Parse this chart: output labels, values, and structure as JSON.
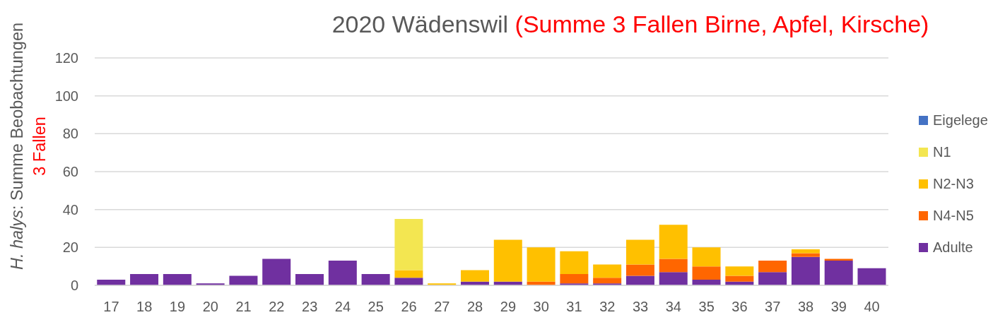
{
  "chart_data": {
    "type": "bar",
    "title": "2020 Wädenswil",
    "subtitle": "(Summe 3 Fallen Birne, Apfel, Kirsche)",
    "ylabel": "H. halys: Summe Beobachtungen\n3 Fallen",
    "categories": [
      "17",
      "18",
      "19",
      "20",
      "21",
      "22",
      "23",
      "24",
      "25",
      "26",
      "27",
      "28",
      "29",
      "30",
      "31",
      "32",
      "33",
      "34",
      "35",
      "36",
      "37",
      "38",
      "39",
      "40"
    ],
    "stacked": true,
    "series": [
      {
        "name": "Adulte",
        "color": "#7030a0",
        "values": [
          3,
          6,
          6,
          1,
          5,
          14,
          6,
          13,
          6,
          4,
          0,
          2,
          2,
          0,
          1,
          1,
          5,
          7,
          3,
          2,
          7,
          15,
          13,
          9
        ]
      },
      {
        "name": "N4-N5",
        "color": "#ff6600",
        "values": [
          0,
          0,
          0,
          0,
          0,
          0,
          0,
          0,
          0,
          0,
          0,
          0,
          0,
          2,
          5,
          3,
          6,
          7,
          7,
          3,
          6,
          2,
          1,
          0
        ]
      },
      {
        "name": "N2-N3",
        "color": "#ffc000",
        "values": [
          0,
          0,
          0,
          0,
          0,
          0,
          0,
          0,
          0,
          4,
          1,
          6,
          22,
          18,
          12,
          7,
          13,
          18,
          10,
          5,
          0,
          2,
          0,
          0
        ]
      },
      {
        "name": "N1",
        "color": "#f3e651",
        "values": [
          0,
          0,
          0,
          0,
          0,
          0,
          0,
          0,
          0,
          27,
          0,
          0,
          0,
          0,
          0,
          0,
          0,
          0,
          0,
          0,
          0,
          0,
          0,
          0
        ]
      },
      {
        "name": "Eigelege",
        "color": "#4472c4",
        "values": [
          0,
          0,
          0,
          0,
          0,
          0,
          0,
          0,
          0,
          0,
          0,
          0,
          0,
          0,
          0,
          0,
          0,
          0,
          0,
          0,
          0,
          0,
          0,
          0
        ]
      }
    ],
    "ylim": [
      0,
      120
    ],
    "yticks": [
      0,
      20,
      40,
      60,
      80,
      100,
      120
    ],
    "grid": "y",
    "legend": "right"
  }
}
